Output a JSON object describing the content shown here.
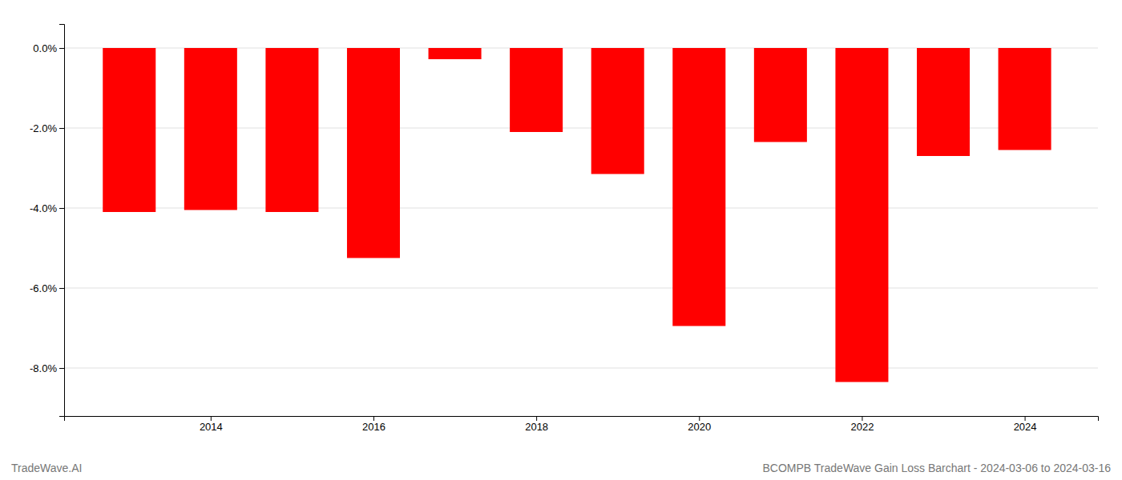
{
  "chart_data": {
    "type": "bar",
    "x": [
      2013,
      2014,
      2015,
      2016,
      2017,
      2018,
      2019,
      2020,
      2021,
      2022,
      2023,
      2024
    ],
    "values": [
      -4.1,
      -4.05,
      -4.1,
      -5.25,
      -0.28,
      -2.1,
      -3.15,
      -6.95,
      -2.35,
      -8.35,
      -2.7,
      -2.55
    ],
    "color": "#ff0000",
    "xlim": [
      2012.2,
      2024.9
    ],
    "xticks": [
      2014,
      2016,
      2018,
      2020,
      2022,
      2024
    ],
    "ylim": [
      -9.2,
      0.6
    ],
    "yticks": [
      {
        "value": 0.0,
        "label": "0.0%"
      },
      {
        "value": -2.0,
        "label": "-2.0%"
      },
      {
        "value": -4.0,
        "label": "-4.0%"
      },
      {
        "value": -6.0,
        "label": "-6.0%"
      },
      {
        "value": -8.0,
        "label": "-8.0%"
      }
    ],
    "grid": true,
    "annotations": [
      "TradeWave.AI",
      "BCOMPB TradeWave Gain Loss Barchart - 2024-03-06 to 2024-03-16"
    ]
  }
}
